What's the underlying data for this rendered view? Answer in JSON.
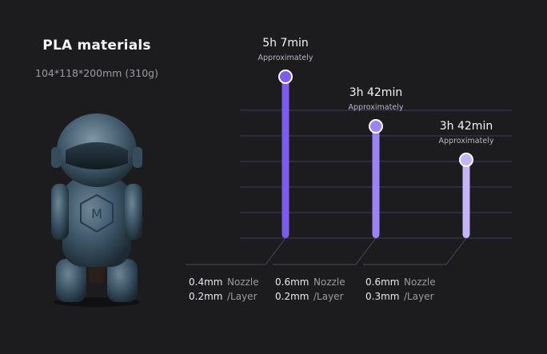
{
  "header": {
    "title": "PLA materials",
    "subtitle": "104*118*200mm (310g)"
  },
  "colors": {
    "background": "#1c1c1f",
    "bar_strong": "#7c5cf0",
    "bar_mid": "#9b82f5",
    "bar_light": "#c3b4fb",
    "grid": "#3a3a66"
  },
  "chart_data": {
    "type": "bar",
    "categories": [
      "0.4mm Nozzle 0.2mm /Layer",
      "0.6mm Nozzle 0.2mm /Layer",
      "0.6mm Nozzle 0.3mm /Layer"
    ],
    "values_hours": [
      5.117,
      3.7,
      3.7
    ],
    "ylim": [
      0,
      6
    ],
    "grid": true,
    "data_labels": [
      {
        "time": "5h 7min",
        "note": "Approximately"
      },
      {
        "time": "3h 42min",
        "note": "Approximately"
      },
      {
        "time": "3h 42min",
        "note": "Approximately"
      }
    ],
    "settings": [
      {
        "nozzle": "0.4mm",
        "nozzle_label": "Nozzle",
        "layer": "0.2mm",
        "layer_label": "/Layer"
      },
      {
        "nozzle": "0.6mm",
        "nozzle_label": "Nozzle",
        "layer": "0.2mm",
        "layer_label": "/Layer"
      },
      {
        "nozzle": "0.6mm",
        "nozzle_label": "Nozzle",
        "layer": "0.3mm",
        "layer_label": "/Layer"
      }
    ]
  }
}
